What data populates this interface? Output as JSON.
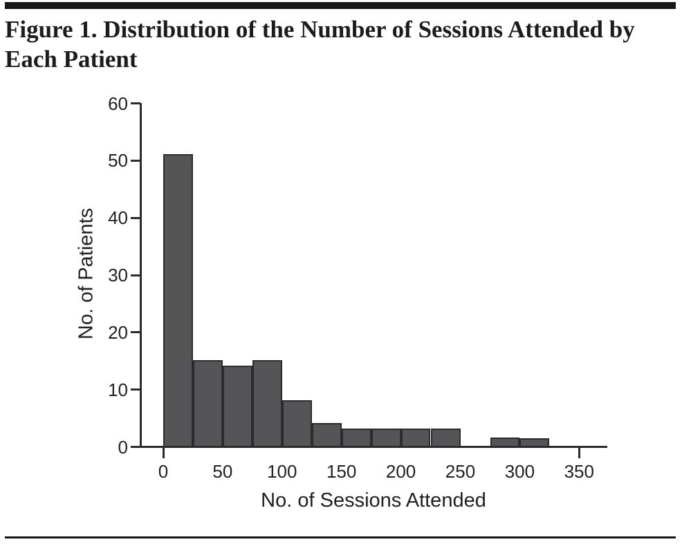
{
  "page": {
    "figure_title": "Figure 1. Distribution of the Number of Sessions Attended by Each Patient",
    "figure_title_lines": [
      "Figure 1. Distribution of the Number of Sessions Attended by",
      "Each Patient"
    ]
  },
  "colors": {
    "bar_fill": "#555557",
    "bar_stroke": "#2b2b2b",
    "axis": "#2b2b2b",
    "text": "#231f20",
    "rule": "#171717",
    "background": "#ffffff"
  },
  "chart_data": {
    "type": "bar",
    "subtype": "histogram",
    "title": "",
    "xlabel": "No. of Sessions Attended",
    "ylabel": "No. of Patients",
    "bin_width": 25,
    "bin_starts": [
      0,
      25,
      50,
      75,
      100,
      125,
      150,
      175,
      200,
      225,
      250,
      275,
      300
    ],
    "values": [
      51,
      15,
      14,
      15,
      8,
      4,
      3,
      3,
      3,
      3,
      0,
      1.5,
      1.3
    ],
    "xticks_labeled": [
      0,
      50,
      100,
      150,
      200,
      250,
      300,
      350
    ],
    "xticks_marked": [
      0,
      350
    ],
    "yticks": [
      0,
      10,
      20,
      30,
      40,
      50,
      60
    ],
    "xlim": [
      -20,
      375
    ],
    "ylim": [
      0,
      60
    ],
    "grid": false,
    "legend": "none"
  }
}
